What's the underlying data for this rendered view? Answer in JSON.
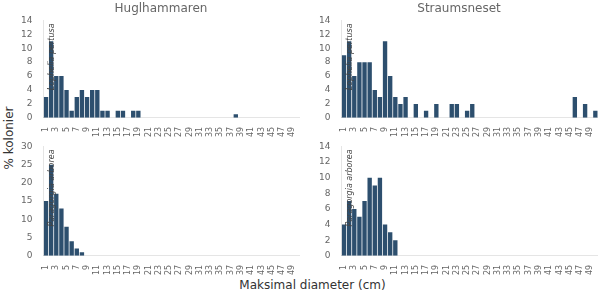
{
  "xlabel": "Maksimal diameter (cm)",
  "ylabel": "% kolonier",
  "chart_data": [
    {
      "type": "bar",
      "title": "Huglhammaren",
      "annotation": "Lophelia pertusa",
      "categories": [
        1,
        null,
        3,
        null,
        5,
        null,
        7,
        null,
        9,
        null,
        11,
        null,
        13,
        null,
        15,
        null,
        17,
        null,
        19,
        null,
        21,
        null,
        23,
        null,
        25,
        null,
        27,
        null,
        29,
        null,
        31,
        null,
        33,
        null,
        35,
        null,
        37,
        null,
        39,
        null,
        41,
        null,
        43,
        null,
        45,
        null,
        47,
        null,
        49,
        null
      ],
      "values": [
        3,
        11,
        6,
        6,
        4,
        1,
        3,
        4,
        3,
        4,
        4,
        1,
        1,
        0,
        1,
        1,
        0,
        1,
        1,
        0,
        0,
        0,
        0,
        0,
        0,
        0,
        0,
        0,
        0,
        0,
        0,
        0,
        0,
        0,
        0,
        0,
        0,
        0.5,
        0,
        0,
        0,
        0,
        0,
        0,
        0,
        0,
        0,
        0,
        0,
        0
      ],
      "color": "#2d4f6e",
      "ylim": [
        0,
        14
      ],
      "yticks": [
        0,
        2,
        4,
        6,
        8,
        10,
        12,
        14
      ],
      "grid": false
    },
    {
      "type": "bar",
      "title": "Straumsneset",
      "annotation": "Lophelia pertusa",
      "categories": [
        1,
        null,
        3,
        null,
        5,
        null,
        7,
        null,
        9,
        null,
        11,
        null,
        13,
        null,
        15,
        null,
        17,
        null,
        19,
        null,
        21,
        null,
        23,
        null,
        25,
        null,
        27,
        null,
        29,
        null,
        31,
        null,
        33,
        null,
        35,
        null,
        37,
        null,
        39,
        null,
        41,
        null,
        43,
        null,
        45,
        null,
        47,
        null,
        49,
        null
      ],
      "values": [
        9,
        11,
        6,
        8,
        8,
        8,
        4,
        3,
        11,
        6,
        3,
        2,
        3,
        0,
        2,
        0,
        1,
        0,
        2,
        0,
        0,
        2,
        2,
        0,
        1,
        2,
        0,
        0,
        0,
        0,
        0,
        0,
        0,
        0,
        0,
        0,
        0,
        0,
        0,
        0,
        0,
        0,
        0,
        0,
        0,
        3,
        0,
        2,
        0,
        1
      ],
      "color": "#2d4f6e",
      "ylim": [
        0,
        14
      ],
      "yticks": [
        0,
        2,
        4,
        6,
        8,
        10,
        12,
        14
      ],
      "grid": false
    },
    {
      "type": "bar",
      "annotation": "Paragorgia arborea",
      "categories": [
        1,
        null,
        3,
        null,
        5,
        null,
        7,
        null,
        9,
        null,
        11,
        null,
        13,
        null,
        15,
        null,
        17,
        null,
        19,
        null,
        21,
        null,
        23,
        null,
        25,
        null,
        27,
        null,
        29,
        null,
        31,
        null,
        33,
        null,
        35,
        null,
        37,
        null,
        39,
        null,
        41,
        null,
        43,
        null,
        45,
        null,
        47,
        null,
        49,
        null
      ],
      "values": [
        15,
        25,
        17,
        13,
        8,
        4,
        2,
        1,
        0,
        0,
        0,
        0,
        0,
        0,
        0,
        0,
        0,
        0,
        0,
        0,
        0,
        0,
        0,
        0,
        0,
        0,
        0,
        0,
        0,
        0,
        0,
        0,
        0,
        0,
        0,
        0,
        0,
        0,
        0,
        0,
        0,
        0,
        0,
        0,
        0,
        0,
        0,
        0,
        0,
        0
      ],
      "color": "#2d4f6e",
      "ylim": [
        0,
        30
      ],
      "yticks": [
        0,
        5,
        10,
        15,
        20,
        25,
        30
      ],
      "grid": false
    },
    {
      "type": "bar",
      "annotation": "Paragorgia arborea",
      "categories": [
        1,
        null,
        3,
        null,
        5,
        null,
        7,
        null,
        9,
        null,
        11,
        null,
        13,
        null,
        15,
        null,
        17,
        null,
        19,
        null,
        21,
        null,
        23,
        null,
        25,
        null,
        27,
        null,
        29,
        null,
        31,
        null,
        33,
        null,
        35,
        null,
        37,
        null,
        39,
        null,
        41,
        null,
        43,
        null,
        45,
        null,
        47,
        null,
        49,
        null
      ],
      "values": [
        4,
        7,
        6,
        5,
        7,
        10,
        9,
        10,
        4,
        3,
        2,
        0,
        0,
        0,
        0,
        0,
        0,
        0,
        0,
        0,
        0,
        0,
        0,
        0,
        0,
        0,
        0,
        0,
        0,
        0,
        0,
        0,
        0,
        0,
        0,
        0,
        0,
        0,
        0,
        0,
        0,
        0,
        0,
        0,
        0,
        0,
        0,
        0,
        0,
        0
      ],
      "color": "#2d4f6e",
      "ylim": [
        0,
        14
      ],
      "yticks": [
        0,
        2,
        4,
        6,
        8,
        10,
        12,
        14
      ],
      "grid": false
    }
  ]
}
